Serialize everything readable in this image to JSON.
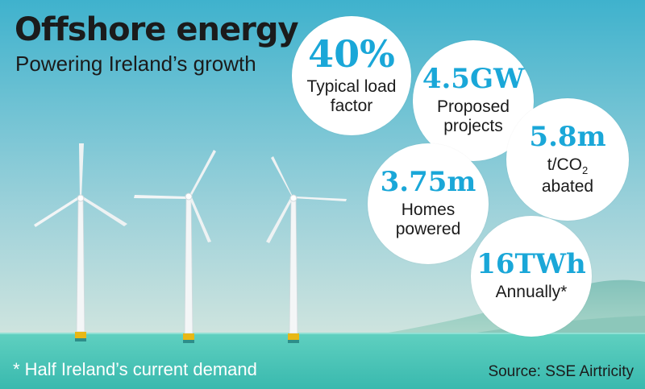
{
  "header": {
    "title": "Offshore energy",
    "subtitle": "Powering Ireland’s growth"
  },
  "stats": [
    {
      "value": "40%",
      "label_line1": "Typical load",
      "label_line2": "factor"
    },
    {
      "value": "4.5GW",
      "label_line1": "Proposed",
      "label_line2": "projects"
    },
    {
      "value": "5.8m",
      "label_line1": "t/CO",
      "label_sub": "2",
      "label_line2": "abated"
    },
    {
      "value": "3.75m",
      "label_line1": "Homes",
      "label_line2": "powered"
    },
    {
      "value": "16TWh",
      "label_line1": "Annually*",
      "label_line2": ""
    }
  ],
  "footer": {
    "footnote": "* Half Ireland’s current demand",
    "source": "Source: SSE Airtricity"
  },
  "colors": {
    "sky_top": "#4bb6cf",
    "sky_bottom": "#dde9de",
    "sea": "#45c6b8",
    "value_blue": "#1aa7d8",
    "float_yellow": "#e8b816"
  },
  "icons": [
    "wind-turbine-icon"
  ]
}
